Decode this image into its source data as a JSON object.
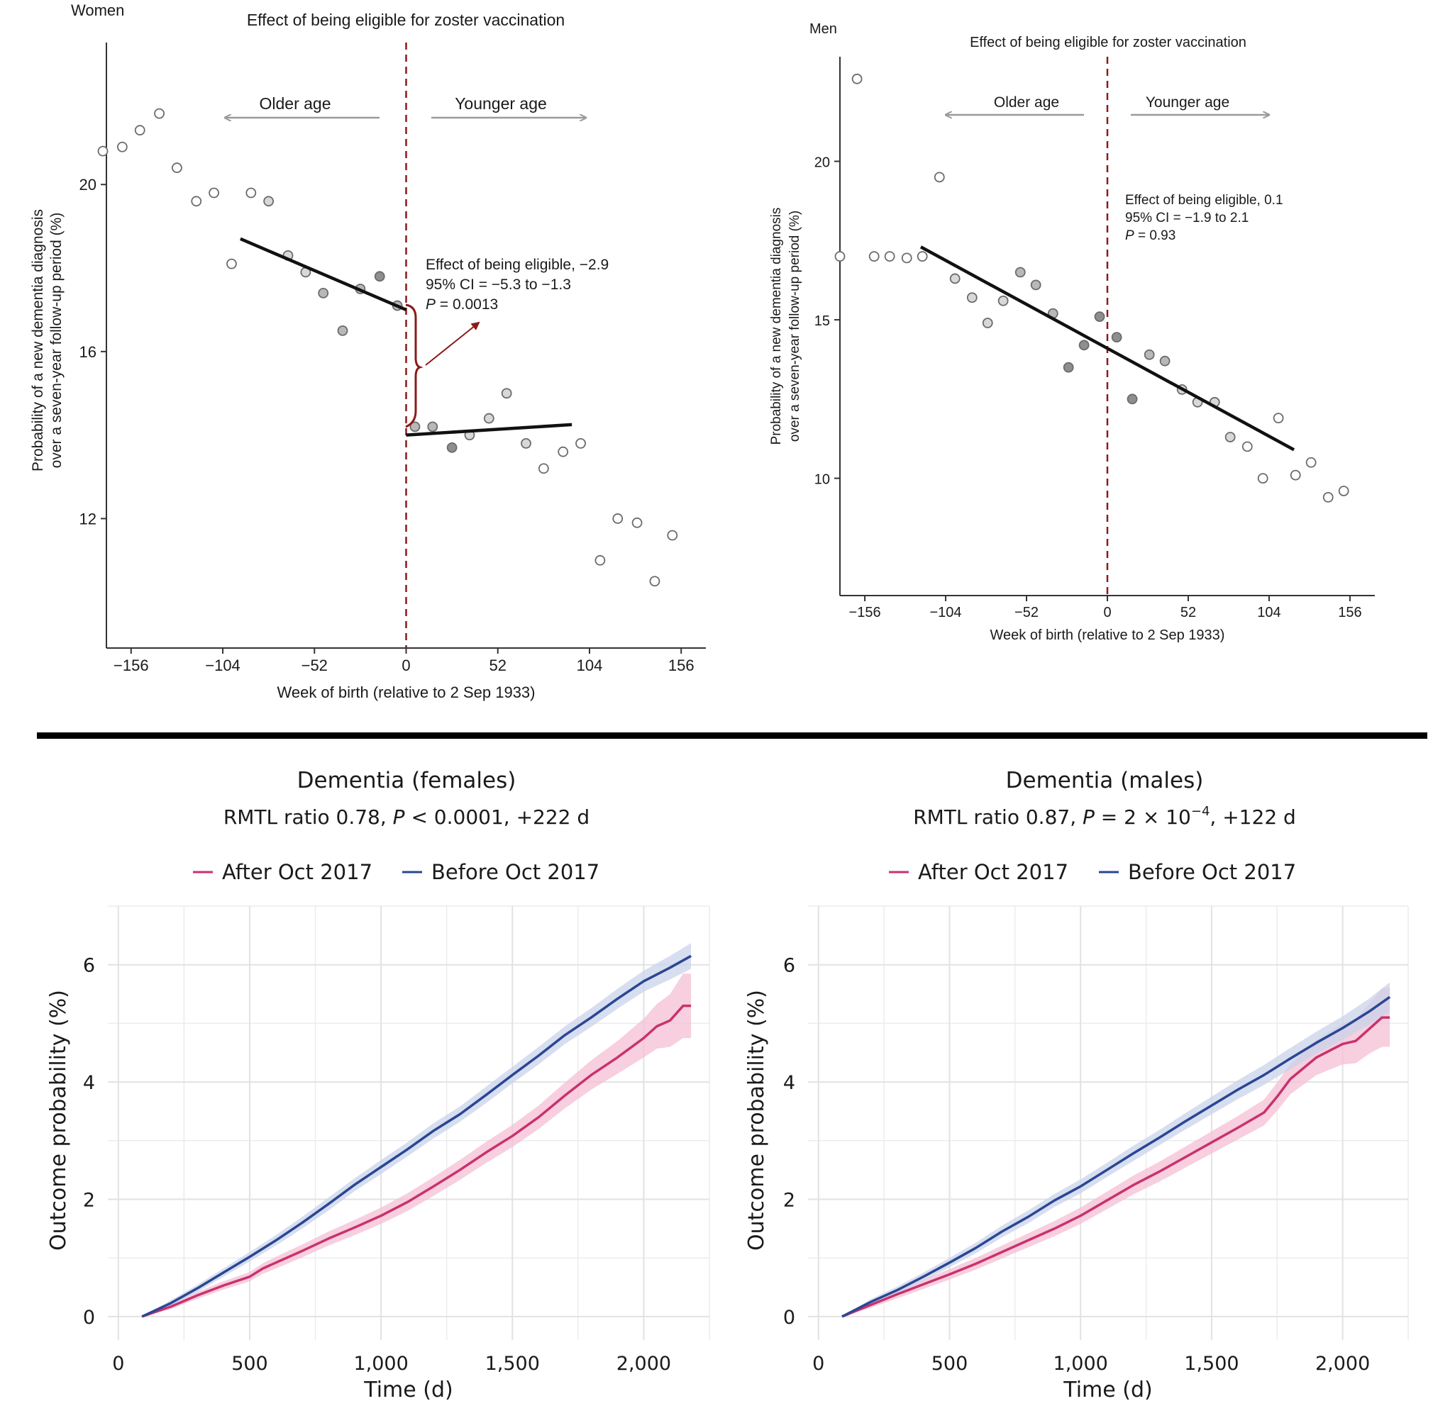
{
  "chart_data": [
    {
      "id": "rd_women",
      "type": "scatter",
      "panel_label": "Women",
      "title": "Effect of being eligible for zoster vaccination",
      "xlabel": "Week of birth (relative to 2 Sep 1933)",
      "ylabel_line1": "Probability of a new dementia diagnosis",
      "ylabel_line2": "over a seven-year follow-up period (%)",
      "xlim": [
        -170,
        170
      ],
      "ylim": [
        8.9,
        23.4
      ],
      "xticks": [
        -156,
        -104,
        -52,
        0,
        52,
        104,
        156
      ],
      "xtick_labels": [
        "−156",
        "−104",
        "−52",
        "0",
        "52",
        "104",
        "156"
      ],
      "yticks": [
        12,
        16,
        20
      ],
      "ytick_labels": [
        "12",
        "16",
        "20"
      ],
      "cutoff_x": 0,
      "arrow_left_label": "Older age",
      "arrow_right_label": "Younger age",
      "annotation": {
        "line1": "Effect of being eligible, −2.9",
        "line2": "95% CI = −5.3 to −1.3",
        "line3_p": "P",
        "line3_rest": " = 0.0013"
      },
      "fit_lines": [
        {
          "x": [
            -94,
            0
          ],
          "y": [
            18.7,
            17.0
          ]
        },
        {
          "x": [
            0,
            94
          ],
          "y": [
            14.0,
            14.25
          ]
        }
      ],
      "points": [
        {
          "x": -172,
          "y": 20.8,
          "shade": "white"
        },
        {
          "x": -161,
          "y": 20.9,
          "shade": "white"
        },
        {
          "x": -151,
          "y": 21.3,
          "shade": "white"
        },
        {
          "x": -140,
          "y": 21.7,
          "shade": "white"
        },
        {
          "x": -130,
          "y": 20.4,
          "shade": "white"
        },
        {
          "x": -119,
          "y": 19.6,
          "shade": "white"
        },
        {
          "x": -109,
          "y": 19.8,
          "shade": "white"
        },
        {
          "x": -99,
          "y": 18.1,
          "shade": "white"
        },
        {
          "x": -88,
          "y": 19.8,
          "shade": "white"
        },
        {
          "x": -78,
          "y": 19.6,
          "shade": "light"
        },
        {
          "x": -67,
          "y": 18.3,
          "shade": "light"
        },
        {
          "x": -57,
          "y": 17.9,
          "shade": "light"
        },
        {
          "x": -47,
          "y": 17.4,
          "shade": "mid"
        },
        {
          "x": -36,
          "y": 16.5,
          "shade": "mid"
        },
        {
          "x": -26,
          "y": 17.5,
          "shade": "mid"
        },
        {
          "x": -15,
          "y": 17.8,
          "shade": "dark"
        },
        {
          "x": -5,
          "y": 17.1,
          "shade": "mid"
        },
        {
          "x": 5,
          "y": 14.2,
          "shade": "mid"
        },
        {
          "x": 15,
          "y": 14.2,
          "shade": "mid"
        },
        {
          "x": 26,
          "y": 13.7,
          "shade": "dark"
        },
        {
          "x": 36,
          "y": 14.0,
          "shade": "light"
        },
        {
          "x": 47,
          "y": 14.4,
          "shade": "light"
        },
        {
          "x": 57,
          "y": 15.0,
          "shade": "light"
        },
        {
          "x": 68,
          "y": 13.8,
          "shade": "light"
        },
        {
          "x": 78,
          "y": 13.2,
          "shade": "white"
        },
        {
          "x": 89,
          "y": 13.6,
          "shade": "white"
        },
        {
          "x": 99,
          "y": 13.8,
          "shade": "white"
        },
        {
          "x": 110,
          "y": 11.0,
          "shade": "white"
        },
        {
          "x": 120,
          "y": 12.0,
          "shade": "white"
        },
        {
          "x": 131,
          "y": 11.9,
          "shade": "white"
        },
        {
          "x": 141,
          "y": 10.5,
          "shade": "white"
        },
        {
          "x": 151,
          "y": 11.6,
          "shade": "white"
        }
      ]
    },
    {
      "id": "rd_men",
      "type": "scatter",
      "panel_label": "Men",
      "title": "Effect of being eligible for zoster vaccination",
      "xlabel": "Week of birth (relative to 2 Sep 1933)",
      "ylabel_line1": "Probability of a new dementia diagnosis",
      "ylabel_line2": "over a seven-year follow-up period (%)",
      "xlim": [
        -172,
        172
      ],
      "ylim": [
        6.3,
        23.3
      ],
      "xticks": [
        -156,
        -104,
        -52,
        0,
        52,
        104,
        156
      ],
      "xtick_labels": [
        "−156",
        "−104",
        "−52",
        "0",
        "52",
        "104",
        "156"
      ],
      "yticks": [
        10,
        15,
        20
      ],
      "ytick_labels": [
        "10",
        "15",
        "20"
      ],
      "cutoff_x": 0,
      "arrow_left_label": "Older age",
      "arrow_right_label": "Younger age",
      "annotation": {
        "line1": "Effect of being eligible, 0.1",
        "line2": "95% CI = −1.9 to 2.1",
        "line3_p": "P",
        "line3_rest": " = 0.93"
      },
      "fit_lines": [
        {
          "x": [
            -120,
            0
          ],
          "y": [
            17.3,
            14.1
          ]
        },
        {
          "x": [
            0,
            120
          ],
          "y": [
            14.1,
            10.9
          ]
        }
      ],
      "points": [
        {
          "x": -172,
          "y": 17.0,
          "shade": "white"
        },
        {
          "x": -161,
          "y": 22.6,
          "shade": "white"
        },
        {
          "x": -150,
          "y": 17.0,
          "shade": "white"
        },
        {
          "x": -140,
          "y": 17.0,
          "shade": "white"
        },
        {
          "x": -129,
          "y": 16.95,
          "shade": "white"
        },
        {
          "x": -119,
          "y": 17.0,
          "shade": "white"
        },
        {
          "x": -108,
          "y": 19.5,
          "shade": "white"
        },
        {
          "x": -98,
          "y": 16.3,
          "shade": "light"
        },
        {
          "x": -87,
          "y": 15.7,
          "shade": "light"
        },
        {
          "x": -77,
          "y": 14.9,
          "shade": "light"
        },
        {
          "x": -67,
          "y": 15.6,
          "shade": "light"
        },
        {
          "x": -56,
          "y": 16.5,
          "shade": "mid"
        },
        {
          "x": -46,
          "y": 16.1,
          "shade": "mid"
        },
        {
          "x": -35,
          "y": 15.2,
          "shade": "mid"
        },
        {
          "x": -25,
          "y": 13.5,
          "shade": "dark"
        },
        {
          "x": -15,
          "y": 14.2,
          "shade": "dark"
        },
        {
          "x": -5,
          "y": 15.1,
          "shade": "dark"
        },
        {
          "x": 6,
          "y": 14.45,
          "shade": "dark"
        },
        {
          "x": 16,
          "y": 12.5,
          "shade": "dark"
        },
        {
          "x": 27,
          "y": 13.9,
          "shade": "mid"
        },
        {
          "x": 37,
          "y": 13.7,
          "shade": "mid"
        },
        {
          "x": 48,
          "y": 12.8,
          "shade": "light"
        },
        {
          "x": 58,
          "y": 12.4,
          "shade": "light"
        },
        {
          "x": 69,
          "y": 12.4,
          "shade": "light"
        },
        {
          "x": 79,
          "y": 11.3,
          "shade": "light"
        },
        {
          "x": 90,
          "y": 11.0,
          "shade": "white"
        },
        {
          "x": 100,
          "y": 10.0,
          "shade": "white"
        },
        {
          "x": 110,
          "y": 11.9,
          "shade": "white"
        },
        {
          "x": 121,
          "y": 10.1,
          "shade": "white"
        },
        {
          "x": 131,
          "y": 10.5,
          "shade": "white"
        },
        {
          "x": 142,
          "y": 9.4,
          "shade": "white"
        },
        {
          "x": 152,
          "y": 9.6,
          "shade": "white"
        }
      ]
    },
    {
      "id": "km_females",
      "type": "line",
      "title": "Dementia (females)",
      "subtitle_pre": "RMTL ratio 0.78, ",
      "subtitle_p": "P",
      "subtitle_post": " < 0.0001, +222 d",
      "xlabel": "Time (d)",
      "ylabel": "Outcome probability (%)",
      "xlim": [
        -40,
        2250
      ],
      "ylim": [
        -0.4,
        7.0
      ],
      "xticks": [
        0,
        500,
        1000,
        1500,
        2000
      ],
      "xtick_labels": [
        "0",
        "500",
        "1,000",
        "1,500",
        "2,000"
      ],
      "x_minor_gridlines": [
        250,
        750,
        1250,
        1750,
        2250
      ],
      "yticks": [
        0,
        2,
        4,
        6
      ],
      "ytick_labels": [
        "0",
        "2",
        "4",
        "6"
      ],
      "y_minor_gridlines": [
        1,
        3,
        5,
        7
      ],
      "grid": true,
      "legend": "top",
      "series": [
        {
          "name": "After Oct 2017",
          "color": "#c8326e",
          "band_color": "#f4bfd3",
          "x": [
            90,
            200,
            300,
            400,
            500,
            550,
            600,
            700,
            800,
            900,
            1000,
            1100,
            1200,
            1300,
            1400,
            1500,
            1600,
            1700,
            1800,
            1900,
            2000,
            2050,
            2100,
            2150,
            2180
          ],
          "y": [
            0,
            0.17,
            0.36,
            0.53,
            0.68,
            0.82,
            0.92,
            1.12,
            1.33,
            1.52,
            1.72,
            1.95,
            2.22,
            2.5,
            2.8,
            3.08,
            3.4,
            3.77,
            4.12,
            4.42,
            4.75,
            4.95,
            5.05,
            5.3,
            5.3
          ],
          "ci_halfwidth": [
            0,
            0.04,
            0.06,
            0.07,
            0.08,
            0.09,
            0.1,
            0.11,
            0.12,
            0.13,
            0.14,
            0.15,
            0.16,
            0.17,
            0.18,
            0.19,
            0.2,
            0.22,
            0.25,
            0.28,
            0.33,
            0.38,
            0.45,
            0.55,
            0.55
          ]
        },
        {
          "name": "Before Oct 2017",
          "color": "#2a4694",
          "band_color": "#c9d3ea",
          "x": [
            90,
            200,
            300,
            400,
            500,
            600,
            700,
            800,
            900,
            1000,
            1100,
            1200,
            1300,
            1400,
            1500,
            1600,
            1700,
            1800,
            1900,
            2000,
            2100,
            2180
          ],
          "y": [
            0,
            0.23,
            0.48,
            0.75,
            1.02,
            1.3,
            1.6,
            1.92,
            2.25,
            2.55,
            2.85,
            3.17,
            3.45,
            3.78,
            4.12,
            4.45,
            4.8,
            5.1,
            5.42,
            5.72,
            5.95,
            6.15
          ],
          "ci_halfwidth": [
            0,
            0.05,
            0.06,
            0.07,
            0.08,
            0.09,
            0.1,
            0.11,
            0.11,
            0.12,
            0.12,
            0.13,
            0.13,
            0.14,
            0.14,
            0.15,
            0.15,
            0.16,
            0.17,
            0.18,
            0.2,
            0.22
          ]
        }
      ]
    },
    {
      "id": "km_males",
      "type": "line",
      "title": "Dementia (males)",
      "subtitle_pre": "RMTL ratio 0.87, ",
      "subtitle_p": "P",
      "subtitle_post": " = 2 × 10",
      "subtitle_sup": "−4",
      "subtitle_tail": ", +122 d",
      "xlabel": "Time (d)",
      "ylabel": "Outcome probability (%)",
      "xlim": [
        -40,
        2250
      ],
      "ylim": [
        -0.4,
        7.0
      ],
      "xticks": [
        0,
        500,
        1000,
        1500,
        2000
      ],
      "xtick_labels": [
        "0",
        "500",
        "1,000",
        "1,500",
        "2,000"
      ],
      "x_minor_gridlines": [
        250,
        750,
        1250,
        1750,
        2250
      ],
      "yticks": [
        0,
        2,
        4,
        6
      ],
      "ytick_labels": [
        "0",
        "2",
        "4",
        "6"
      ],
      "y_minor_gridlines": [
        1,
        3,
        5,
        7
      ],
      "grid": true,
      "legend": "top",
      "series": [
        {
          "name": "After Oct 2017",
          "color": "#c8326e",
          "band_color": "#f4bfd3",
          "x": [
            90,
            200,
            300,
            400,
            500,
            600,
            700,
            800,
            900,
            1000,
            1100,
            1200,
            1300,
            1400,
            1500,
            1600,
            1700,
            1750,
            1800,
            1900,
            2000,
            2050,
            2100,
            2150,
            2180
          ],
          "y": [
            0,
            0.2,
            0.38,
            0.55,
            0.72,
            0.9,
            1.1,
            1.3,
            1.5,
            1.72,
            1.98,
            2.24,
            2.47,
            2.72,
            2.97,
            3.22,
            3.48,
            3.75,
            4.05,
            4.42,
            4.65,
            4.7,
            4.9,
            5.1,
            5.1
          ],
          "ci_halfwidth": [
            0,
            0.05,
            0.07,
            0.08,
            0.09,
            0.1,
            0.11,
            0.12,
            0.13,
            0.14,
            0.15,
            0.16,
            0.17,
            0.18,
            0.19,
            0.2,
            0.22,
            0.24,
            0.26,
            0.3,
            0.35,
            0.38,
            0.42,
            0.5,
            0.5
          ]
        },
        {
          "name": "Before Oct 2017",
          "color": "#2a4694",
          "band_color": "#c9d3ea",
          "x": [
            90,
            200,
            300,
            400,
            500,
            600,
            700,
            800,
            900,
            1000,
            1100,
            1200,
            1300,
            1400,
            1500,
            1600,
            1700,
            1800,
            1900,
            2000,
            2100,
            2180
          ],
          "y": [
            0,
            0.25,
            0.45,
            0.68,
            0.92,
            1.17,
            1.45,
            1.7,
            1.98,
            2.22,
            2.5,
            2.78,
            3.05,
            3.33,
            3.6,
            3.87,
            4.12,
            4.4,
            4.67,
            4.92,
            5.2,
            5.45
          ],
          "ci_halfwidth": [
            0,
            0.05,
            0.06,
            0.07,
            0.08,
            0.09,
            0.1,
            0.11,
            0.11,
            0.12,
            0.12,
            0.13,
            0.13,
            0.14,
            0.15,
            0.16,
            0.17,
            0.18,
            0.19,
            0.2,
            0.22,
            0.25
          ]
        }
      ]
    }
  ]
}
